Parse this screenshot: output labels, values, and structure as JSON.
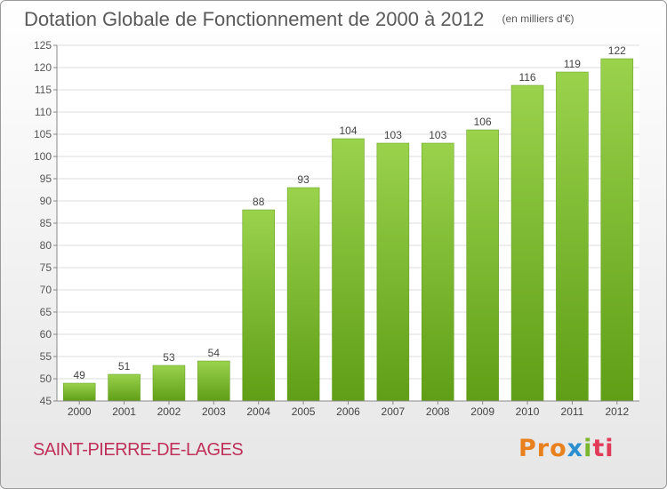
{
  "chart_data": {
    "type": "bar",
    "title": "Dotation Globale de Fonctionnement de 2000 à 2012",
    "unit": "(en milliers d'€)",
    "categories": [
      "2000",
      "2001",
      "2002",
      "2003",
      "2004",
      "2005",
      "2006",
      "2007",
      "2008",
      "2009",
      "2010",
      "2011",
      "2012"
    ],
    "values": [
      49,
      51,
      53,
      54,
      88,
      93,
      104,
      103,
      103,
      106,
      116,
      119,
      122
    ],
    "ylim": [
      45,
      125
    ],
    "yticks": [
      45,
      50,
      55,
      60,
      65,
      70,
      75,
      80,
      85,
      90,
      95,
      100,
      105,
      110,
      115,
      120,
      125
    ],
    "grid": true,
    "bar_color": "#7dbb2e"
  },
  "commune": "SAINT-PIERRE-DE-LAGES",
  "logo": {
    "text": "Proxiti",
    "parts": [
      "Pro",
      "x",
      "i",
      "ti"
    ]
  }
}
